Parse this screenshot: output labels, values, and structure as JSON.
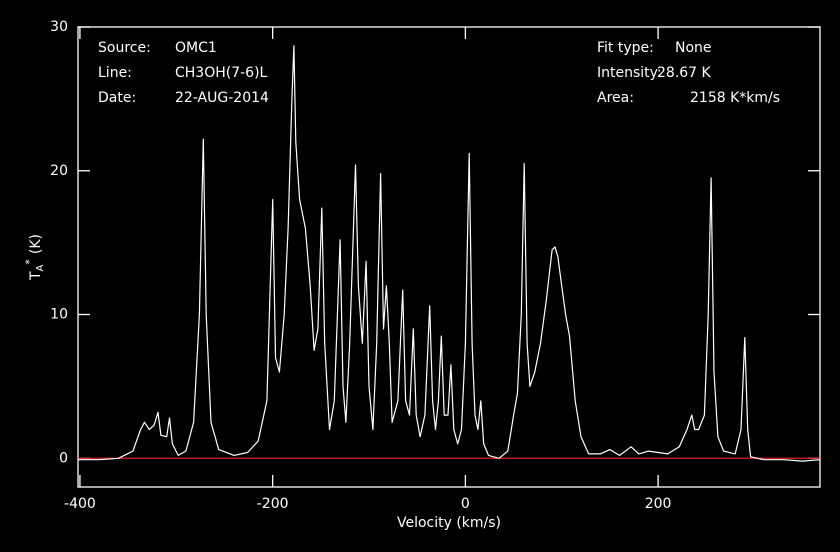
{
  "chart_data": {
    "type": "line",
    "x_label": "Velocity (km/s)",
    "y_label": {
      "base": "T",
      "sub": "A",
      "sup": "*",
      "unit": "(K)"
    },
    "info_left": [
      [
        "Source:",
        "OMC1"
      ],
      [
        "Line:",
        "CH3OH(7-6)L"
      ],
      [
        "Date:",
        "22-AUG-2014"
      ]
    ],
    "info_right": [
      [
        "Fit type:",
        "None"
      ],
      [
        "Intensity:",
        "28.67 K"
      ],
      [
        "Area:",
        "2158 K*km/s"
      ]
    ],
    "xlim": [
      -402,
      368
    ],
    "ylim": [
      -2,
      30
    ],
    "xticks": [
      -400,
      -200,
      0,
      200
    ],
    "yticks": [
      0,
      10,
      20,
      30
    ],
    "baseline": {
      "value": 0,
      "color": "#e02020"
    },
    "series": [
      {
        "color": "#ffffff",
        "x": [
          -402,
          -380,
          -360,
          -345,
          -337,
          -333,
          -328,
          -323,
          -319,
          -316,
          -310,
          -307,
          -304,
          -298,
          -290,
          -282,
          -276,
          -272,
          -269,
          -264,
          -256,
          -240,
          -226,
          -215,
          -206,
          -200,
          -197,
          -193,
          -188,
          -184,
          -180,
          -178,
          -176,
          -172,
          -166,
          -161,
          -157,
          -153,
          -149,
          -146,
          -141,
          -136,
          -130,
          -127,
          -124,
          -120,
          -114,
          -111,
          -107,
          -103,
          -100,
          -96,
          -92,
          -88,
          -85,
          -82,
          -79,
          -76,
          -70,
          -65,
          -62,
          -58,
          -54,
          -51,
          -47,
          -42,
          -37,
          -34,
          -31,
          -28,
          -25,
          -22,
          -18,
          -15,
          -12,
          -8,
          -4,
          0,
          4,
          7,
          10,
          13,
          16,
          19,
          24,
          35,
          44,
          50,
          54,
          58,
          61,
          64,
          67,
          72,
          78,
          84,
          90,
          93,
          96,
          100,
          104,
          108,
          114,
          120,
          128,
          140,
          150,
          160,
          172,
          180,
          190,
          210,
          222,
          230,
          235,
          238,
          242,
          248,
          252,
          255,
          258,
          262,
          268,
          280,
          286,
          290,
          293,
          296,
          310,
          330,
          350,
          368
        ],
        "values": [
          -0.1,
          -0.1,
          0,
          0.5,
          2.0,
          2.5,
          2.0,
          2.3,
          3.2,
          1.6,
          1.5,
          2.8,
          1.0,
          0.2,
          0.5,
          2.5,
          10,
          22.2,
          10,
          2.5,
          0.6,
          0.2,
          0.4,
          1.2,
          4,
          18,
          7,
          6,
          10,
          16,
          25,
          28.7,
          22,
          18,
          16,
          12,
          7.5,
          9,
          17.4,
          8,
          2,
          4,
          15.2,
          5,
          2.5,
          8,
          20.4,
          12,
          8,
          13.7,
          5,
          2,
          8,
          19.8,
          9,
          12,
          8,
          2.5,
          4,
          11.7,
          4,
          3,
          9,
          3,
          1.5,
          3,
          10.6,
          4,
          2,
          4,
          8.5,
          3,
          3,
          6.5,
          2,
          1,
          2,
          8,
          21.2,
          8,
          3,
          2,
          4,
          1,
          0.2,
          0,
          0.5,
          3,
          4.5,
          10,
          20.5,
          8,
          5,
          6,
          8,
          11,
          14.5,
          14.7,
          14,
          12,
          10,
          8.5,
          4,
          1.5,
          0.3,
          0.3,
          0.6,
          0.2,
          0.8,
          0.3,
          0.5,
          0.3,
          0.8,
          2,
          3,
          2,
          2,
          3,
          10,
          19.5,
          6,
          1.5,
          0.5,
          0.3,
          2,
          8.4,
          2,
          0.1,
          -0.1,
          -0.1,
          -0.2,
          -0.1
        ]
      }
    ]
  }
}
